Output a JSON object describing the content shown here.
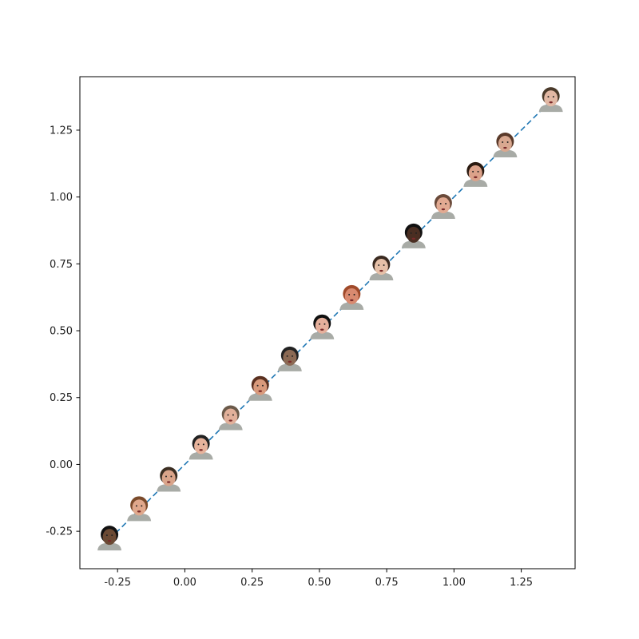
{
  "chart_data": {
    "type": "line",
    "title": "",
    "xlabel": "",
    "ylabel": "",
    "xlim": [
      -0.39,
      1.45
    ],
    "ylim": [
      -0.39,
      1.45
    ],
    "grid": false,
    "line_color": "#1f77b4",
    "line_style": "dashed",
    "x_ticks": [
      -0.25,
      0.0,
      0.25,
      0.5,
      0.75,
      1.0,
      1.25
    ],
    "y_ticks": [
      -0.25,
      0.0,
      0.25,
      0.5,
      0.75,
      1.0,
      1.25
    ],
    "x_tick_labels": [
      "-0.25",
      "0.00",
      "0.25",
      "0.50",
      "0.75",
      "1.00",
      "1.25"
    ],
    "y_tick_labels": [
      "-0.25",
      "0.00",
      "0.25",
      "0.50",
      "0.75",
      "1.00",
      "1.25"
    ],
    "line": {
      "x": [
        -0.28,
        1.36
      ],
      "y": [
        -0.28,
        1.36
      ]
    },
    "markers": {
      "kind": "face-thumbnail-images",
      "x": [
        -0.28,
        -0.17,
        -0.06,
        0.06,
        0.17,
        0.28,
        0.39,
        0.51,
        0.62,
        0.73,
        0.85,
        0.96,
        1.08,
        1.19,
        1.36
      ],
      "y": [
        -0.28,
        -0.17,
        -0.06,
        0.06,
        0.17,
        0.28,
        0.39,
        0.51,
        0.62,
        0.73,
        0.85,
        0.96,
        1.08,
        1.19,
        1.36
      ]
    }
  }
}
